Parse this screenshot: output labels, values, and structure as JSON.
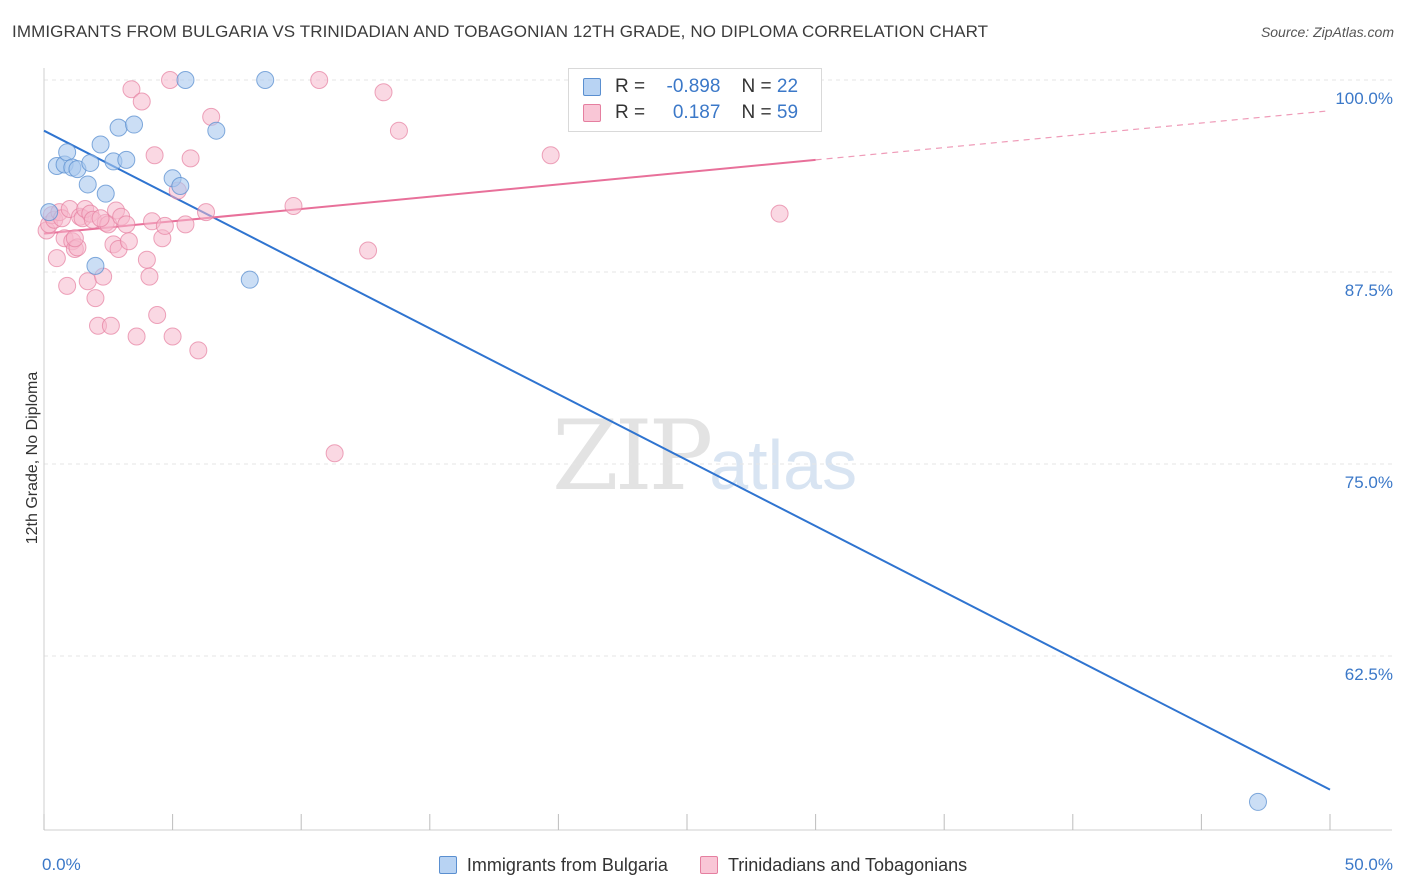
{
  "title": "IMMIGRANTS FROM BULGARIA VS TRINIDADIAN AND TOBAGONIAN 12TH GRADE, NO DIPLOMA CORRELATION CHART",
  "source": "Source: ZipAtlas.com",
  "watermark": {
    "zip": "ZIP",
    "atlas": "atlas"
  },
  "legend": {
    "rows": [
      {
        "r_label": "R =",
        "r_value": "-0.898",
        "n_label": "N =",
        "n_value": "22"
      },
      {
        "r_label": "R =",
        "r_value": "0.187",
        "n_label": "N =",
        "n_value": "59"
      }
    ]
  },
  "bottom_legend": [
    "Immigrants from Bulgaria",
    "Trinidadians and Tobagonians"
  ],
  "colors": {
    "blue_fill": "#a8c8ef",
    "blue_stroke": "#5a8fd0",
    "blue_line": "#2f74d0",
    "pink_fill": "#f6b8cc",
    "pink_stroke": "#e57fa0",
    "pink_line": "#e8709a",
    "tick_text": "#3b78c8",
    "grid": "#e6e6e6"
  },
  "chart_data": {
    "type": "scatter",
    "title": "IMMIGRANTS FROM BULGARIA VS TRINIDADIAN AND TOBAGONIAN 12TH GRADE, NO DIPLOMA CORRELATION CHART",
    "xlabel": "",
    "ylabel": "12th Grade, No Diploma",
    "xlim": [
      0,
      50
    ],
    "ylim": [
      49.5,
      100.5
    ],
    "x_tick_labels": [
      {
        "value": 0,
        "label": "0.0%"
      },
      {
        "value": 50,
        "label": "50.0%"
      }
    ],
    "x_minor_ticks": [
      0,
      5,
      10,
      15,
      20,
      25,
      30,
      35,
      40,
      45,
      50
    ],
    "y_ticks": [
      {
        "value": 100,
        "label": "100.0%"
      },
      {
        "value": 87.5,
        "label": "87.5%"
      },
      {
        "value": 75,
        "label": "75.0%"
      },
      {
        "value": 62.5,
        "label": "62.5%"
      }
    ],
    "series": [
      {
        "name": "Immigrants from Bulgaria",
        "color": "blue",
        "R": -0.898,
        "N": 22,
        "trendline": {
          "x": [
            0,
            50
          ],
          "y": [
            96.7,
            53.8
          ]
        },
        "points": [
          [
            0.2,
            91.4
          ],
          [
            0.5,
            94.4
          ],
          [
            0.8,
            94.5
          ],
          [
            0.9,
            95.3
          ],
          [
            1.1,
            94.3
          ],
          [
            1.3,
            94.2
          ],
          [
            1.7,
            93.2
          ],
          [
            1.8,
            94.6
          ],
          [
            2.0,
            87.9
          ],
          [
            2.2,
            95.8
          ],
          [
            2.4,
            92.6
          ],
          [
            2.7,
            94.7
          ],
          [
            2.9,
            96.9
          ],
          [
            3.2,
            94.8
          ],
          [
            3.5,
            97.1
          ],
          [
            5.0,
            93.6
          ],
          [
            5.3,
            93.1
          ],
          [
            5.5,
            100.0
          ],
          [
            6.7,
            96.7
          ],
          [
            8.0,
            87.0
          ],
          [
            8.6,
            100.0
          ],
          [
            47.2,
            53.0
          ]
        ]
      },
      {
        "name": "Trinidadians and Tobagonians",
        "color": "pink",
        "R": 0.187,
        "N": 59,
        "trendline": {
          "x": [
            0,
            30
          ],
          "y": [
            90.0,
            94.8
          ]
        },
        "trendline_dashed": {
          "x": [
            30,
            50
          ],
          "y": [
            94.8,
            98.0
          ]
        },
        "points": [
          [
            0.1,
            90.2
          ],
          [
            0.2,
            90.6
          ],
          [
            0.3,
            91.2
          ],
          [
            0.4,
            90.9
          ],
          [
            0.5,
            88.4
          ],
          [
            0.6,
            91.4
          ],
          [
            0.7,
            91.0
          ],
          [
            0.8,
            89.7
          ],
          [
            0.9,
            86.6
          ],
          [
            1.0,
            91.6
          ],
          [
            1.1,
            89.5
          ],
          [
            1.2,
            89.0
          ],
          [
            1.3,
            89.1
          ],
          [
            1.4,
            91.1
          ],
          [
            1.5,
            91.0
          ],
          [
            1.6,
            91.6
          ],
          [
            1.7,
            86.9
          ],
          [
            1.8,
            91.3
          ],
          [
            1.9,
            90.9
          ],
          [
            2.0,
            85.8
          ],
          [
            2.1,
            84.0
          ],
          [
            2.3,
            87.2
          ],
          [
            2.4,
            90.7
          ],
          [
            2.5,
            90.6
          ],
          [
            2.6,
            84.0
          ],
          [
            2.7,
            89.3
          ],
          [
            2.8,
            91.5
          ],
          [
            2.9,
            89.0
          ],
          [
            3.0,
            91.1
          ],
          [
            3.2,
            90.6
          ],
          [
            3.3,
            89.5
          ],
          [
            3.4,
            99.4
          ],
          [
            3.6,
            83.3
          ],
          [
            3.8,
            98.6
          ],
          [
            4.0,
            88.3
          ],
          [
            4.1,
            87.2
          ],
          [
            4.2,
            90.8
          ],
          [
            4.3,
            95.1
          ],
          [
            4.4,
            84.7
          ],
          [
            4.6,
            89.7
          ],
          [
            4.7,
            90.5
          ],
          [
            4.9,
            100.0
          ],
          [
            5.0,
            83.3
          ],
          [
            5.2,
            92.8
          ],
          [
            5.5,
            90.6
          ],
          [
            5.7,
            94.9
          ],
          [
            6.0,
            82.4
          ],
          [
            6.3,
            91.4
          ],
          [
            6.5,
            97.6
          ],
          [
            9.7,
            91.8
          ],
          [
            10.7,
            100.0
          ],
          [
            11.3,
            75.7
          ],
          [
            12.6,
            88.9
          ],
          [
            13.2,
            99.2
          ],
          [
            13.8,
            96.7
          ],
          [
            19.7,
            95.1
          ],
          [
            28.6,
            91.3
          ],
          [
            1.2,
            89.7
          ],
          [
            2.2,
            91.0
          ]
        ]
      }
    ]
  }
}
